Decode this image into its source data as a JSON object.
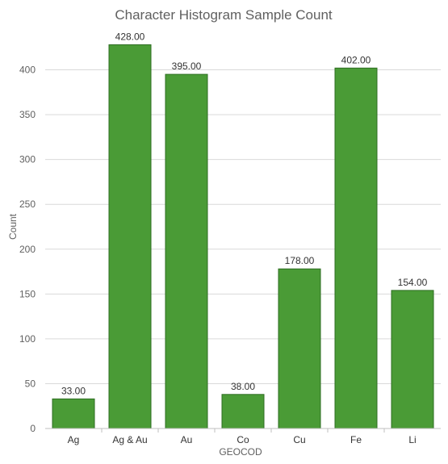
{
  "chart_data": {
    "type": "bar",
    "title": "Character Histogram Sample Count",
    "xlabel": "GEOCOD",
    "ylabel": "Count",
    "categories": [
      "Ag",
      "Ag & Au",
      "Au",
      "Co",
      "Cu",
      "Fe",
      "Li"
    ],
    "values": [
      33,
      428,
      395,
      38,
      178,
      402,
      154
    ],
    "data_labels": [
      "33.00",
      "428.00",
      "395.00",
      "38.00",
      "178.00",
      "402.00",
      "154.00"
    ],
    "ylim": [
      0,
      450
    ],
    "yticks": [
      0,
      50,
      100,
      150,
      200,
      250,
      300,
      350,
      400
    ],
    "grid": true,
    "legend": "none",
    "bar_color": "#4a9b36"
  }
}
